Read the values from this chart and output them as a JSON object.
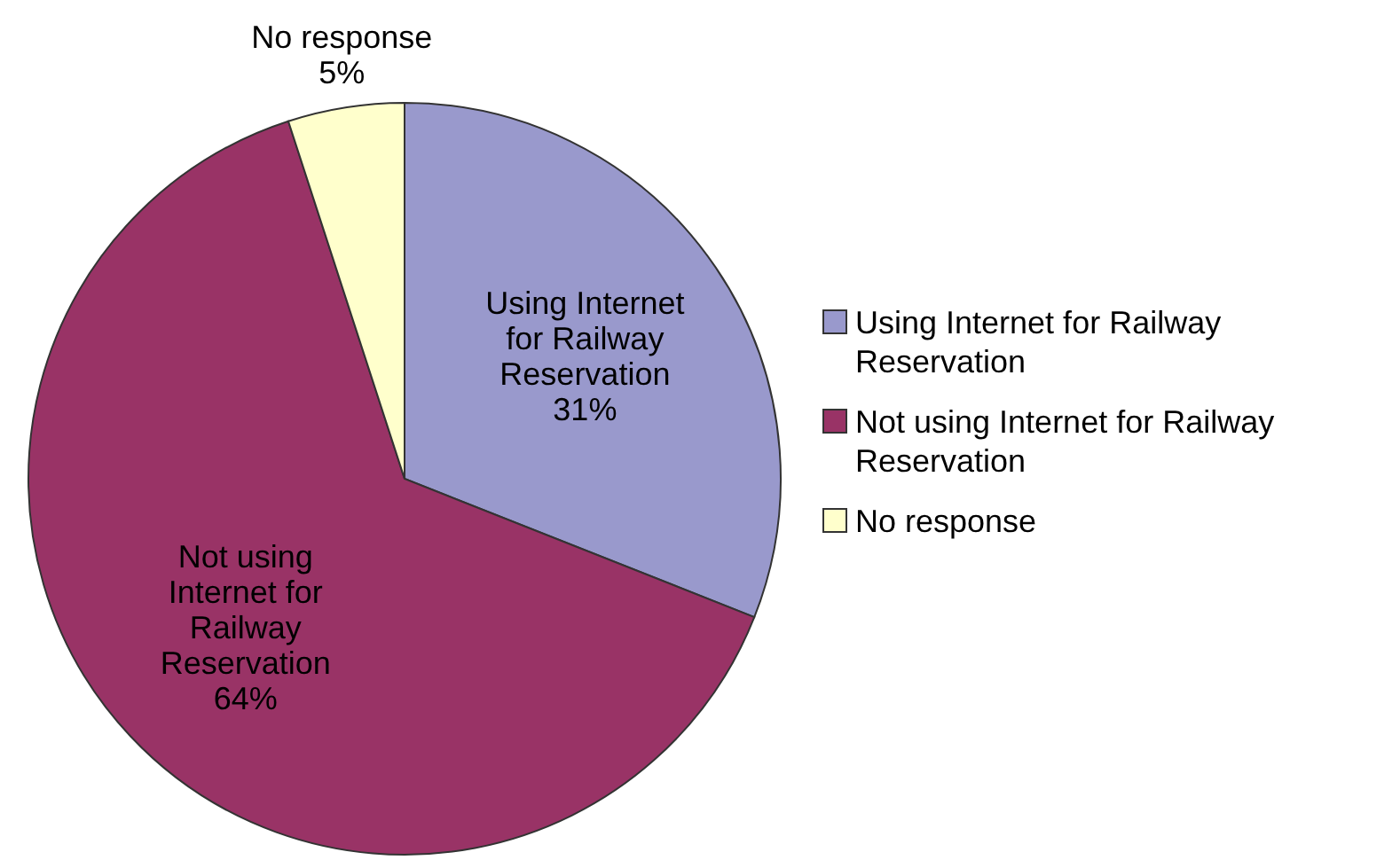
{
  "chart_data": {
    "type": "pie",
    "categories": [
      "Using Internet  for Railway Reservation",
      "Not using Internet  for Railway Reservation",
      "No response"
    ],
    "values": [
      31,
      64,
      5
    ],
    "colors": [
      "#9999cc",
      "#993366",
      "#ffffcc"
    ],
    "value_labels": [
      "31%",
      "64%",
      "5%"
    ],
    "legend": "right"
  }
}
